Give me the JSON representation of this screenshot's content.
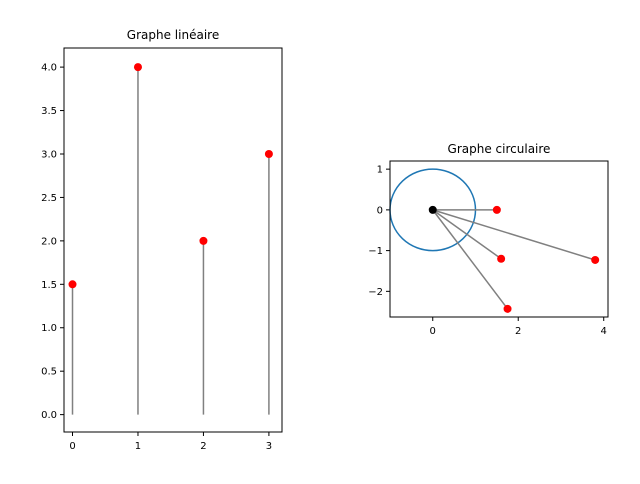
{
  "chart_data": [
    {
      "type": "stem",
      "title": "Graphe linéaire",
      "x": [
        0,
        1,
        2,
        3
      ],
      "y": [
        1.5,
        4.0,
        2.0,
        3.0
      ],
      "xlim": [
        -0.13,
        3.2
      ],
      "ylim": [
        -0.2,
        4.22
      ],
      "xticks": [
        0,
        1,
        2,
        3
      ],
      "xticklabels": [
        "0",
        "1",
        "2",
        "3"
      ],
      "yticks": [
        0,
        0.5,
        1.0,
        1.5,
        2.0,
        2.5,
        3.0,
        3.5,
        4.0
      ],
      "yticklabels": [
        "0.0",
        "0.5",
        "1.0",
        "1.5",
        "2.0",
        "2.5",
        "3.0",
        "3.5",
        "4.0"
      ],
      "stem_color": "#808080",
      "marker_color": "#ff0000",
      "grid": false
    },
    {
      "type": "scatter",
      "title": "Graphe circulaire",
      "origin": [
        0,
        0
      ],
      "points": [
        {
          "x": 1.5,
          "y": 0.0
        },
        {
          "x": 1.6,
          "y": -1.2
        },
        {
          "x": 3.8,
          "y": -1.23
        },
        {
          "x": 1.75,
          "y": -2.43
        }
      ],
      "circle": {
        "cx": 0,
        "cy": 0,
        "r": 1
      },
      "xlim": [
        -1.0,
        4.1
      ],
      "ylim": [
        -2.63,
        1.2
      ],
      "xticks": [
        0,
        2,
        4
      ],
      "xticklabels": [
        "0",
        "2",
        "4"
      ],
      "yticks": [
        1,
        0,
        -1,
        -2
      ],
      "yticklabels": [
        "1",
        "0",
        "−1",
        "−2"
      ],
      "line_color": "#808080",
      "marker_color": "#ff0000",
      "origin_color": "#000000",
      "circle_color": "#1f77b4",
      "grid": false
    }
  ]
}
